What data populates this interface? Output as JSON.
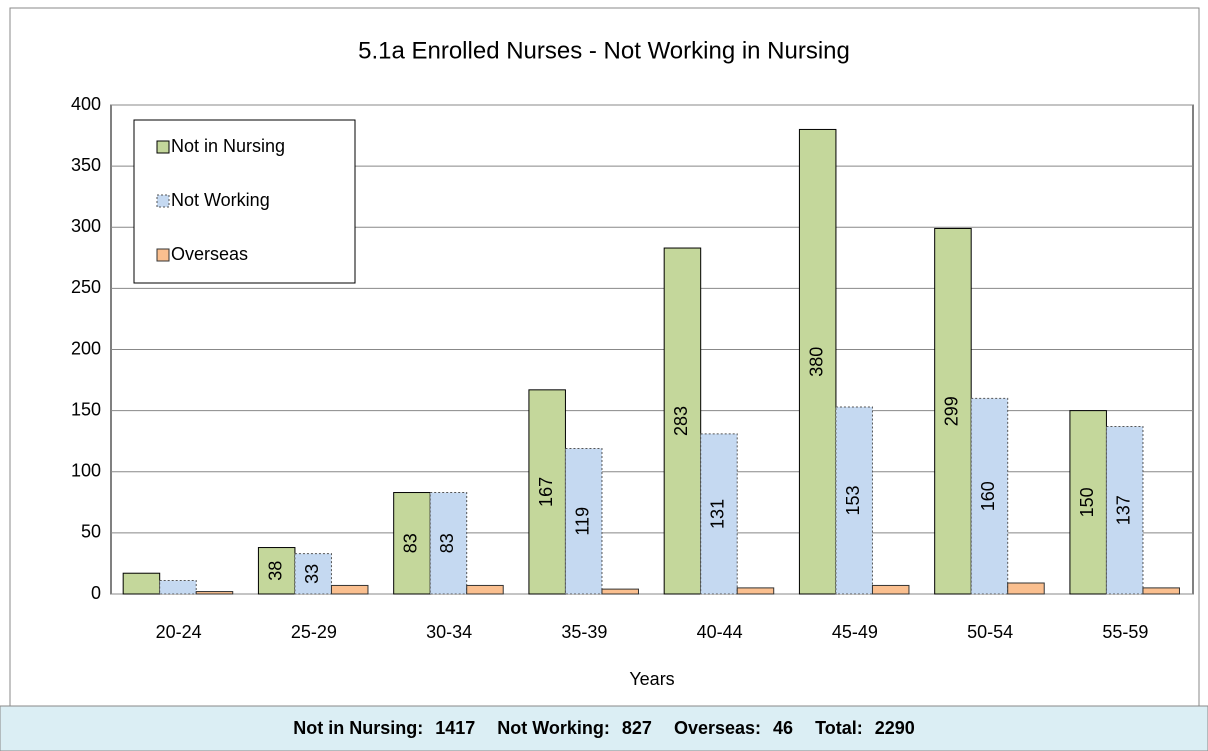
{
  "chart_data": {
    "type": "bar",
    "title": "5.1a Enrolled Nurses - Not Working in Nursing",
    "x_label": "Years",
    "categories": [
      "20-24",
      "25-29",
      "30-34",
      "35-39",
      "40-44",
      "45-49",
      "50-54",
      "55-59"
    ],
    "series": [
      {
        "name": "Not in Nursing",
        "color": "#c4d79b",
        "values": [
          17,
          38,
          83,
          167,
          283,
          380,
          299,
          150
        ],
        "value_labels": [
          null,
          "38",
          "83",
          "167",
          "283",
          "380",
          "299",
          "150"
        ]
      },
      {
        "name": "Not Working",
        "color": "#c5d9f1",
        "values": [
          11,
          33,
          83,
          119,
          131,
          153,
          160,
          137
        ],
        "value_labels": [
          null,
          "33",
          "83",
          "119",
          "131",
          "153",
          "160",
          "137"
        ]
      },
      {
        "name": "Overseas",
        "color": "#fabf8f",
        "values": [
          2,
          7,
          7,
          4,
          5,
          7,
          9,
          5
        ]
      }
    ],
    "ylim": [
      0,
      400
    ],
    "yticks": [
      0,
      50,
      100,
      150,
      200,
      250,
      300,
      350,
      400
    ],
    "grid": true,
    "legend": "upper left"
  },
  "summary": [
    {
      "label": "Not in Nursing:",
      "value": 1417
    },
    {
      "label": "Not Working:",
      "value": 827
    },
    {
      "label": "Overseas:",
      "value": 46
    },
    {
      "label": "Total:",
      "value": 2290
    }
  ]
}
